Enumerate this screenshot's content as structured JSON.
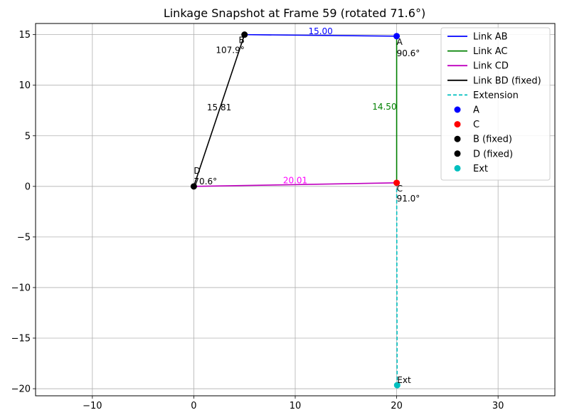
{
  "chart_data": {
    "type": "line",
    "title": "Linkage Snapshot at Frame 59 (rotated 71.6°)",
    "xlabel": "",
    "ylabel": "",
    "xlim": [
      -15.6,
      35.6
    ],
    "ylim": [
      -20.7,
      16.1
    ],
    "x_ticks": [
      -10,
      0,
      10,
      20,
      30
    ],
    "y_ticks": [
      -20,
      -15,
      -10,
      -5,
      0,
      5,
      10,
      15
    ],
    "x_tick_labels": [
      "−10",
      "0",
      "10",
      "20",
      "30"
    ],
    "y_tick_labels": [
      "−20",
      "−15",
      "−10",
      "−5",
      "0",
      "5",
      "10",
      "15"
    ],
    "grid": true,
    "legend_position": "top-right",
    "series": [
      {
        "name": "Link AB",
        "style": "solid",
        "color": "#0000ff",
        "x": [
          5.0,
          20.0
        ],
        "y": [
          15.0,
          14.85
        ]
      },
      {
        "name": "Link AC",
        "style": "solid",
        "color": "#008000",
        "x": [
          20.0,
          20.0
        ],
        "y": [
          14.85,
          0.35
        ]
      },
      {
        "name": "Link CD",
        "style": "solid",
        "color": "#bf00bf",
        "x": [
          20.0,
          0.0
        ],
        "y": [
          0.35,
          0.0
        ]
      },
      {
        "name": "Link BD (fixed)",
        "style": "solid",
        "color": "#000000",
        "x": [
          0.0,
          5.0
        ],
        "y": [
          0.0,
          15.0
        ]
      },
      {
        "name": "Extension",
        "style": "dashed",
        "color": "#00bfbf",
        "x": [
          20.0,
          20.05
        ],
        "y": [
          0.35,
          -19.65
        ]
      }
    ],
    "points": [
      {
        "name": "A",
        "color": "#0000ff",
        "x": 20.0,
        "y": 14.85
      },
      {
        "name": "C",
        "color": "#ff0000",
        "x": 20.0,
        "y": 0.35
      },
      {
        "name": "B (fixed)",
        "color": "#000000",
        "x": 5.0,
        "y": 15.0
      },
      {
        "name": "D (fixed)",
        "color": "#000000",
        "x": 0.0,
        "y": 0.0
      },
      {
        "name": "Ext",
        "color": "#00bfbf",
        "x": 20.05,
        "y": -19.65
      }
    ],
    "annotations": [
      {
        "text": "15.00",
        "color": "#0000ff",
        "x": 12.5,
        "y": 14.92,
        "anchor": "middle",
        "dy": -2
      },
      {
        "text": "14.50",
        "color": "#008000",
        "x": 20.0,
        "y": 7.6,
        "anchor": "end",
        "dy": 0
      },
      {
        "text": "20.01",
        "color": "#ff00ff",
        "x": 10.0,
        "y": 0.17,
        "anchor": "middle",
        "dy": -2
      },
      {
        "text": "15.81",
        "color": "#000000",
        "x": 2.5,
        "y": 7.5,
        "anchor": "middle",
        "dy": 0
      },
      {
        "text": "A",
        "color": "#000000",
        "x": 20.0,
        "y": 14.85,
        "anchor": "start",
        "dy": 12
      },
      {
        "text": "90.6°",
        "color": "#000000",
        "x": 20.0,
        "y": 14.85,
        "anchor": "start",
        "dy": 28
      },
      {
        "text": "B",
        "color": "#000000",
        "x": 5.0,
        "y": 15.0,
        "anchor": "end",
        "dy": 12
      },
      {
        "text": "107.9°",
        "color": "#000000",
        "x": 5.0,
        "y": 15.0,
        "anchor": "end",
        "dy": 26
      },
      {
        "text": "C",
        "color": "#000000",
        "x": 20.0,
        "y": 0.35,
        "anchor": "start",
        "dy": 12
      },
      {
        "text": "91.0°",
        "color": "#000000",
        "x": 20.0,
        "y": 0.35,
        "anchor": "start",
        "dy": 26
      },
      {
        "text": "D",
        "color": "#000000",
        "x": 0.0,
        "y": 0.0,
        "anchor": "start",
        "dy": -18
      },
      {
        "text": "70.6°",
        "color": "#000000",
        "x": 0.0,
        "y": 0.0,
        "anchor": "start",
        "dy": -3
      },
      {
        "text": "Ext",
        "color": "#000000",
        "x": 20.05,
        "y": -19.65,
        "anchor": "start",
        "dy": -3
      }
    ]
  }
}
